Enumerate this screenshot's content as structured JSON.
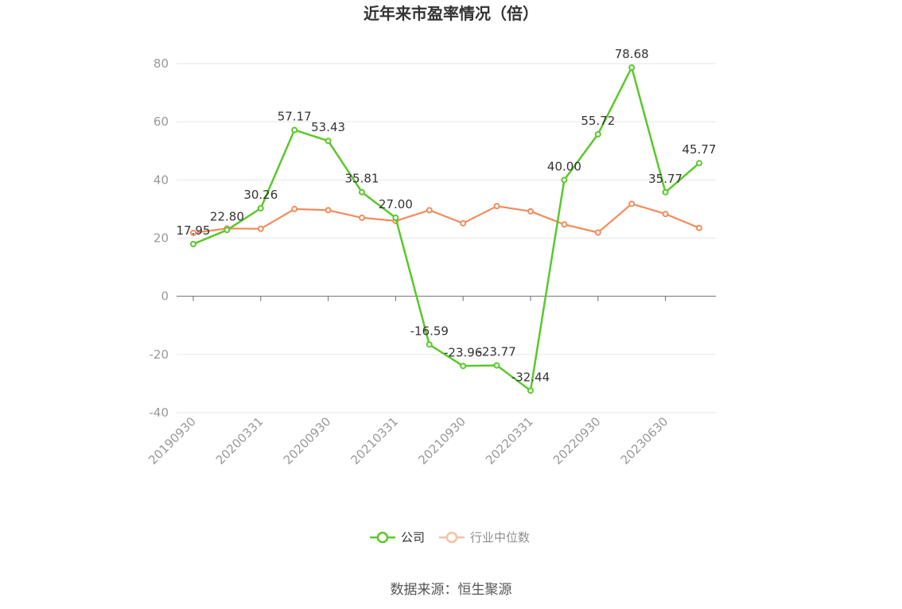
{
  "chart_data": {
    "type": "line",
    "title": "近年来市盈率情况（倍）",
    "source": "数据来源：恒生聚源",
    "ylim": [
      -40,
      80
    ],
    "yticks": [
      -40,
      -20,
      0,
      20,
      40,
      60,
      80
    ],
    "grid": true,
    "legend_position": "bottom-center",
    "x_tick_labels": [
      "20190930",
      "20200331",
      "20200930",
      "20210331",
      "20210930",
      "20220331",
      "20220930",
      "20230630"
    ],
    "series": [
      {
        "name": "公司",
        "color": "#5ac82b",
        "values": [
          17.95,
          22.8,
          30.26,
          57.17,
          53.43,
          35.81,
          27.0,
          -16.59,
          -23.96,
          -23.77,
          -32.44,
          40.0,
          55.72,
          78.68,
          35.77,
          45.77
        ],
        "labels": [
          "17.95",
          "22.80",
          "30.26",
          "57.17",
          "53.43",
          "35.81",
          "27.00",
          "-16.59",
          "-23.96",
          "-23.77",
          "-32.44",
          "40.00",
          "55.72",
          "78.68",
          "35.77",
          "45.77"
        ]
      },
      {
        "name": "行业中位数",
        "color": "#f28c5c",
        "values": [
          21.8,
          23.3,
          23.2,
          30.0,
          29.6,
          27.0,
          25.9,
          29.6,
          25.1,
          31.0,
          29.2,
          24.7,
          21.9,
          31.8,
          28.3,
          23.5
        ]
      }
    ]
  }
}
